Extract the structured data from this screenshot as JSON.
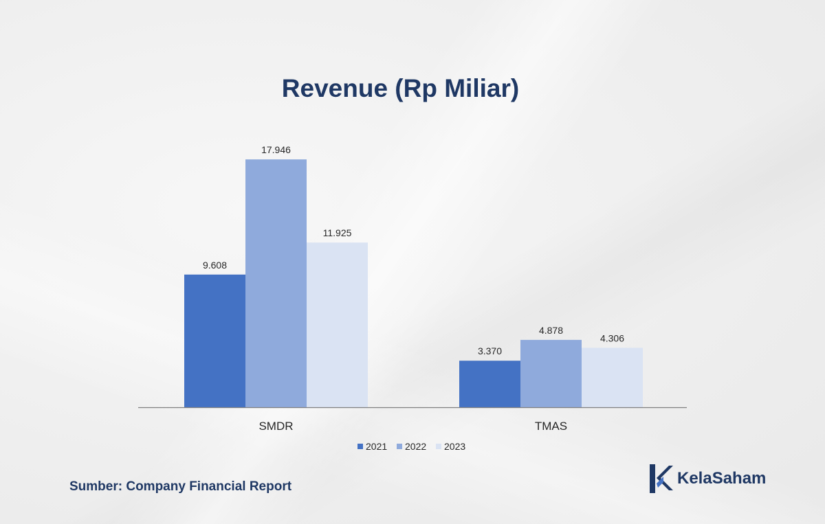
{
  "title": "Revenue (Rp Miliar)",
  "source": "Sumber: Company Financial Report",
  "brand": "KelaSaham",
  "colors": {
    "title": "#1f3864",
    "series": [
      "#4472c4",
      "#8faadc",
      "#dae3f3"
    ],
    "axis": "#7f7f7f",
    "text": "#262626"
  },
  "chart_data": {
    "type": "bar",
    "title": "Revenue (Rp Miliar)",
    "categories": [
      "SMDR",
      "TMAS"
    ],
    "series": [
      {
        "name": "2021",
        "values": [
          9608,
          3370
        ],
        "labels": [
          "9.608",
          "3.370"
        ]
      },
      {
        "name": "2022",
        "values": [
          17946,
          4878
        ],
        "labels": [
          "17.946",
          "4.878"
        ]
      },
      {
        "name": "2023",
        "values": [
          11925,
          4306
        ],
        "labels": [
          "11.925",
          "4.306"
        ]
      }
    ],
    "xlabel": "",
    "ylabel": "",
    "ylim": [
      0,
      20000
    ],
    "grid": false,
    "legend": "bottom"
  }
}
